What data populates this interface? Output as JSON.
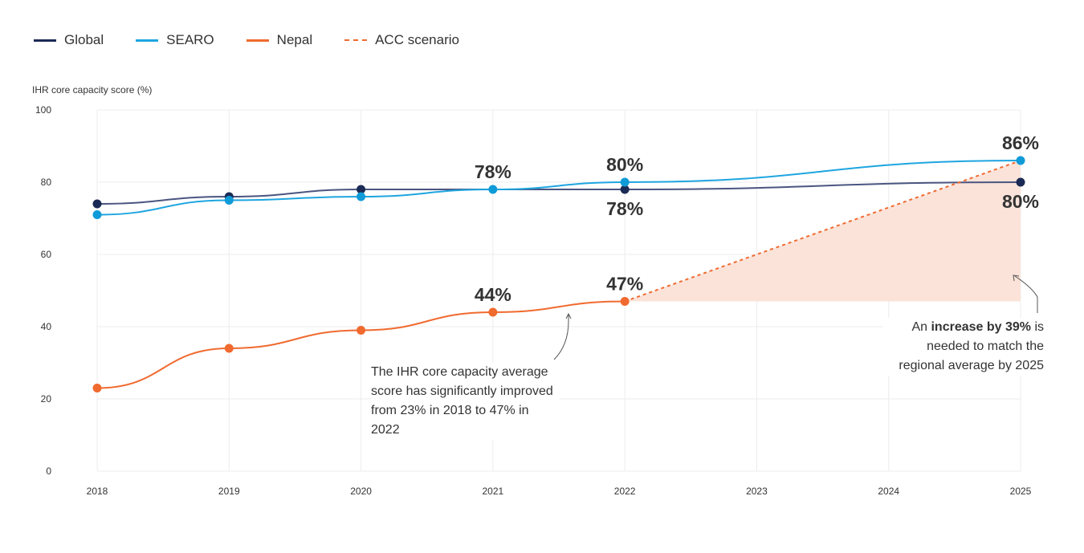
{
  "legend": [
    {
      "label": "Global",
      "color": "#1b2a55",
      "style": "solid"
    },
    {
      "label": "SEARO",
      "color": "#1ea5e0",
      "style": "solid"
    },
    {
      "label": "Nepal",
      "color": "#f06a2f",
      "style": "solid"
    },
    {
      "label": "ACC scenario",
      "color": "#f06a2f",
      "style": "dashed"
    }
  ],
  "notes": {
    "left": "The IHR core capacity average score has significantly improved from 23% in 2018 to 47% in 2022",
    "right_prefix": "An ",
    "right_bold": "increase by 39%",
    "right_suffix": " is needed to match the regional average by 2025"
  },
  "chart_data": {
    "type": "line",
    "title": "",
    "xlabel": "",
    "ylabel": "IHR core capacity score (%)",
    "x": [
      "2018",
      "2019",
      "2020",
      "2021",
      "2022",
      "2023",
      "2024",
      "2025"
    ],
    "ylim": [
      0,
      100
    ],
    "yticks": [
      0,
      20,
      40,
      60,
      80,
      100
    ],
    "grid": true,
    "legend_position": "top-left",
    "series": [
      {
        "name": "Global",
        "color": "#1b2a55",
        "values": [
          74,
          76,
          78,
          78,
          78,
          null,
          null,
          80
        ],
        "markers": [
          "2018",
          "2019",
          "2020",
          "2022",
          "2025"
        ]
      },
      {
        "name": "SEARO",
        "color": "#1ea5e0",
        "values": [
          71,
          75,
          76,
          78,
          80,
          null,
          null,
          86
        ],
        "markers": [
          "2018",
          "2019",
          "2020",
          "2021",
          "2022",
          "2025"
        ]
      },
      {
        "name": "Nepal",
        "color": "#f06a2f",
        "values": [
          23,
          34,
          39,
          44,
          47,
          null,
          null,
          null
        ],
        "markers": [
          "2018",
          "2019",
          "2020",
          "2021",
          "2022"
        ]
      },
      {
        "name": "ACC scenario",
        "color": "#f06a2f",
        "style": "dashed",
        "points": [
          [
            "2022",
            47
          ],
          [
            "2025",
            86
          ]
        ]
      }
    ],
    "shaded_gap": {
      "from_year": "2022",
      "to_year": "2025",
      "base": 47,
      "top": 86,
      "color": "#fbe3d9"
    },
    "annotations": [
      {
        "text": "78%",
        "x": "2021",
        "y": 78,
        "position": "above"
      },
      {
        "text": "80%",
        "x": "2022",
        "y": 80,
        "position": "above"
      },
      {
        "text": "78%",
        "x": "2022",
        "y": 78,
        "position": "below"
      },
      {
        "text": "86%",
        "x": "2025",
        "y": 86,
        "position": "above"
      },
      {
        "text": "80%",
        "x": "2025",
        "y": 80,
        "position": "below"
      },
      {
        "text": "44%",
        "x": "2021",
        "y": 44,
        "position": "above"
      },
      {
        "text": "47%",
        "x": "2022",
        "y": 47,
        "position": "above"
      }
    ]
  }
}
